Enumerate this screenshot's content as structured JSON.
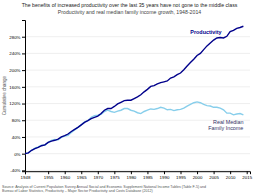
{
  "chart_data": {
    "type": "line",
    "title": "The benefits of increased productivity over the last 35 years have not gone to the middle class",
    "subtitle": "Productivity and real median family income growth, 1948-2014",
    "y_label": "Cumulative change",
    "source": "Source: Analysis of Current Population Survey Annual Social and Economic Supplement National Income Tables (Table F-5) and\nBureau of Labor Statistics, Productivity – Major Sector Productivity and Costs Database (2012)",
    "x": [
      1948,
      1949,
      1950,
      1951,
      1952,
      1953,
      1954,
      1955,
      1956,
      1957,
      1958,
      1959,
      1960,
      1961,
      1962,
      1963,
      1964,
      1965,
      1966,
      1967,
      1968,
      1969,
      1970,
      1971,
      1972,
      1973,
      1974,
      1975,
      1976,
      1977,
      1978,
      1979,
      1980,
      1981,
      1982,
      1983,
      1984,
      1985,
      1986,
      1987,
      1988,
      1989,
      1990,
      1991,
      1992,
      1993,
      1994,
      1995,
      1996,
      1997,
      1998,
      1999,
      2000,
      2001,
      2002,
      2003,
      2004,
      2005,
      2006,
      2007,
      2008,
      2009,
      2010,
      2011,
      2012,
      2013,
      2014
    ],
    "series": [
      {
        "name": "Real Median\nFamily Income",
        "color": "#87ceeb",
        "values": [
          0.0,
          0.02,
          0.08,
          0.13,
          0.16,
          0.2,
          0.2,
          0.27,
          0.32,
          0.34,
          0.33,
          0.39,
          0.42,
          0.44,
          0.51,
          0.57,
          0.63,
          0.69,
          0.76,
          0.79,
          0.87,
          0.91,
          0.92,
          0.94,
          1.01,
          1.04,
          1.01,
          0.99,
          1.02,
          1.04,
          1.08,
          1.08,
          1.04,
          1.02,
          0.98,
          0.96,
          1.01,
          1.04,
          1.07,
          1.06,
          1.08,
          1.11,
          1.09,
          1.05,
          1.06,
          1.03,
          1.05,
          1.06,
          1.09,
          1.14,
          1.18,
          1.22,
          1.24,
          1.22,
          1.18,
          1.15,
          1.14,
          1.11,
          1.11,
          1.09,
          1.05,
          0.97,
          0.97,
          0.93,
          0.95,
          0.96,
          0.93
        ]
      },
      {
        "name": "Productivity",
        "color": "#00008b",
        "values": [
          0.0,
          0.02,
          0.08,
          0.12,
          0.15,
          0.19,
          0.21,
          0.27,
          0.3,
          0.32,
          0.35,
          0.4,
          0.43,
          0.47,
          0.53,
          0.58,
          0.63,
          0.69,
          0.75,
          0.79,
          0.84,
          0.87,
          0.9,
          0.96,
          1.04,
          1.08,
          1.08,
          1.13,
          1.19,
          1.23,
          1.27,
          1.28,
          1.28,
          1.32,
          1.36,
          1.41,
          1.48,
          1.54,
          1.61,
          1.63,
          1.67,
          1.7,
          1.72,
          1.74,
          1.81,
          1.84,
          1.89,
          1.93,
          2.01,
          2.1,
          2.18,
          2.26,
          2.35,
          2.4,
          2.49,
          2.58,
          2.65,
          2.72,
          2.77,
          2.78,
          2.77,
          2.81,
          2.92,
          2.95,
          3.0,
          3.02,
          3.05
        ]
      }
    ],
    "xlim": [
      1948,
      2016
    ],
    "ylim": [
      -0.42,
      3.2
    ],
    "xticks": [
      1948,
      1955,
      1960,
      1965,
      1970,
      1975,
      1980,
      1985,
      1990,
      1995,
      2000,
      2005,
      2010,
      2015
    ],
    "yticks": [
      {
        "value": -0.4,
        "label": "-40%"
      },
      {
        "value": 0.0,
        "label": "0%"
      },
      {
        "value": 0.4,
        "label": "40%"
      },
      {
        "value": 0.8,
        "label": "80%"
      },
      {
        "value": 1.2,
        "label": "120%"
      },
      {
        "value": 1.6,
        "label": "160%"
      },
      {
        "value": 2.0,
        "label": "200%"
      },
      {
        "value": 2.4,
        "label": "240%"
      },
      {
        "value": 2.8,
        "label": "280%"
      }
    ],
    "grid": true
  }
}
